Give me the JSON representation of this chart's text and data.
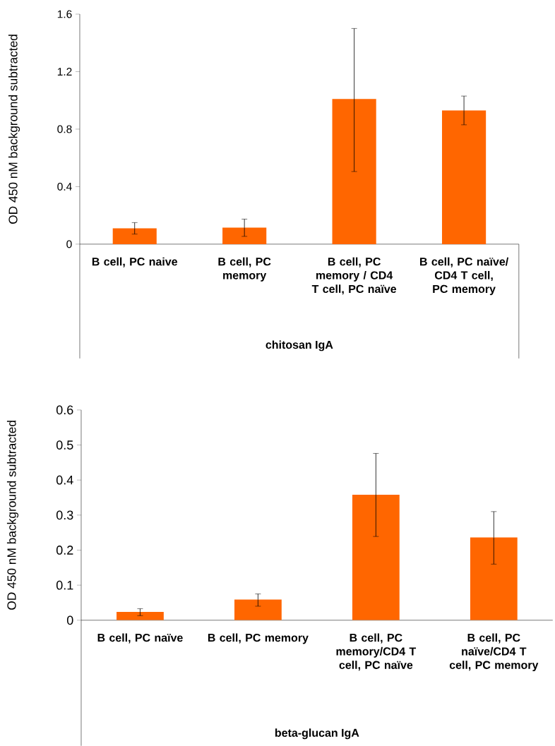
{
  "chart_data": [
    {
      "type": "bar",
      "xlabel": "chitosan IgA",
      "ylabel": "OD 450 nM background subtracted",
      "categories": [
        "B cell, PC naive",
        "B cell, PC memory",
        "B cell, PC memory / CD4 T cell, PC naïve",
        "B cell, PC naïve/ CD4 T cell, PC memory"
      ],
      "values": [
        0.11,
        0.115,
        1.01,
        0.93
      ],
      "errors": [
        [
          0.07,
          0.15
        ],
        [
          0.054,
          0.174
        ],
        [
          0.505,
          1.5
        ],
        [
          0.83,
          1.03
        ]
      ],
      "color": "#ff6600",
      "ylim": [
        0,
        1.6
      ],
      "yticks": [
        0,
        0.4,
        0.8,
        1.2,
        1.6
      ]
    },
    {
      "type": "bar",
      "xlabel": "beta-glucan IgA",
      "ylabel": "OD 450 nM background subtracted",
      "categories": [
        "B cell, PC naïve",
        "B cell, PC memory",
        "B cell, PC memory/CD4 T cell, PC naïve",
        "B cell, PC naïve/CD4 T cell, PC memory"
      ],
      "values": [
        0.024,
        0.059,
        0.358,
        0.236
      ],
      "errors": [
        [
          0.013,
          0.033
        ],
        [
          0.04,
          0.075
        ],
        [
          0.239,
          0.476
        ],
        [
          0.16,
          0.31
        ]
      ],
      "color": "#ff6600",
      "ylim": [
        0,
        0.6
      ],
      "yticks": [
        0,
        0.1,
        0.2,
        0.3,
        0.4,
        0.5,
        0.6
      ]
    }
  ]
}
